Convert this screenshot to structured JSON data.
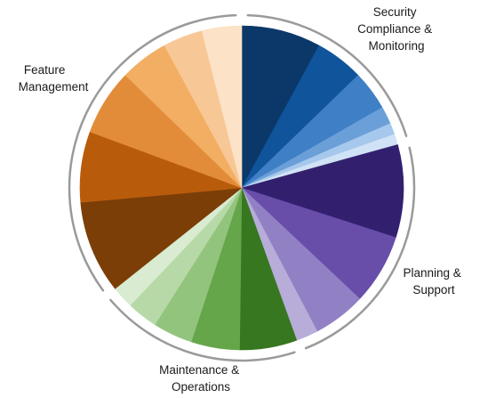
{
  "chart_data": {
    "type": "pie",
    "title": "",
    "groups": [
      {
        "name": "Security Compliance & Monitoring",
        "label_lines": [
          "Security",
          "Compliance &",
          "Monitoring"
        ],
        "slices": [
          {
            "value": 9.0,
            "color": "#0b3869"
          },
          {
            "value": 5.5,
            "color": "#10549b"
          },
          {
            "value": 4.5,
            "color": "#3f7fc6"
          },
          {
            "value": 2.0,
            "color": "#6b9fd8"
          },
          {
            "value": 1.3,
            "color": "#a6c8ec"
          },
          {
            "value": 1.2,
            "color": "#d0e2f5"
          }
        ]
      },
      {
        "name": "Planning & Support",
        "label_lines": [
          "Planning &",
          "Support"
        ],
        "slices": [
          {
            "value": 10.5,
            "color": "#32206f"
          },
          {
            "value": 8.0,
            "color": "#684ea9"
          },
          {
            "value": 6.0,
            "color": "#9280c5"
          },
          {
            "value": 2.5,
            "color": "#b8acd9"
          }
        ]
      },
      {
        "name": "Maintenance & Operations",
        "label_lines": [
          "Maintenance &",
          "Operations"
        ],
        "slices": [
          {
            "value": 6.5,
            "color": "#377720"
          },
          {
            "value": 5.5,
            "color": "#66a64b"
          },
          {
            "value": 4.5,
            "color": "#93c47d"
          },
          {
            "value": 3.5,
            "color": "#b7d9a7"
          },
          {
            "value": 2.5,
            "color": "#d9ebd1"
          }
        ]
      },
      {
        "name": "Feature Management",
        "label_lines": [
          "Feature",
          "Management"
        ],
        "slices": [
          {
            "value": 10.5,
            "color": "#7b3e07"
          },
          {
            "value": 8.0,
            "color": "#b85c0c"
          },
          {
            "value": 7.5,
            "color": "#e28c39"
          },
          {
            "value": 5.5,
            "color": "#f2ae63"
          },
          {
            "value": 4.5,
            "color": "#f8c796"
          },
          {
            "value": 4.5,
            "color": "#fce2c6"
          }
        ]
      }
    ],
    "start_angle_deg": 0,
    "direction": "clockwise",
    "group_arcs": true,
    "legend": "none"
  }
}
